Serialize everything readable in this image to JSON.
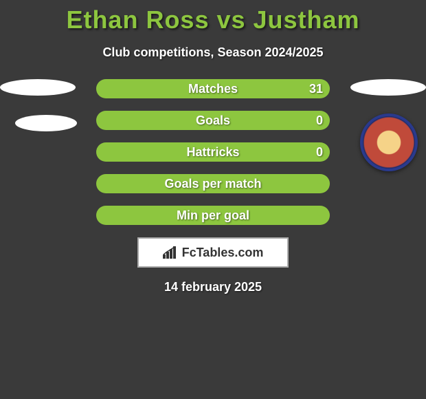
{
  "title": "Ethan Ross vs Justham",
  "subtitle": "Club competitions, Season 2024/2025",
  "date_text": "14 february 2025",
  "brand": "FcTables.com",
  "bar_track_color": "#8dc63f",
  "bar_width_pct": 100,
  "title_color": "#8dc63f",
  "stats": [
    {
      "label": "Matches",
      "value": "31",
      "show_value": true
    },
    {
      "label": "Goals",
      "value": "0",
      "show_value": true
    },
    {
      "label": "Hattricks",
      "value": "0",
      "show_value": true
    },
    {
      "label": "Goals per match",
      "value": "",
      "show_value": false
    },
    {
      "label": "Min per goal",
      "value": "",
      "show_value": false
    }
  ]
}
